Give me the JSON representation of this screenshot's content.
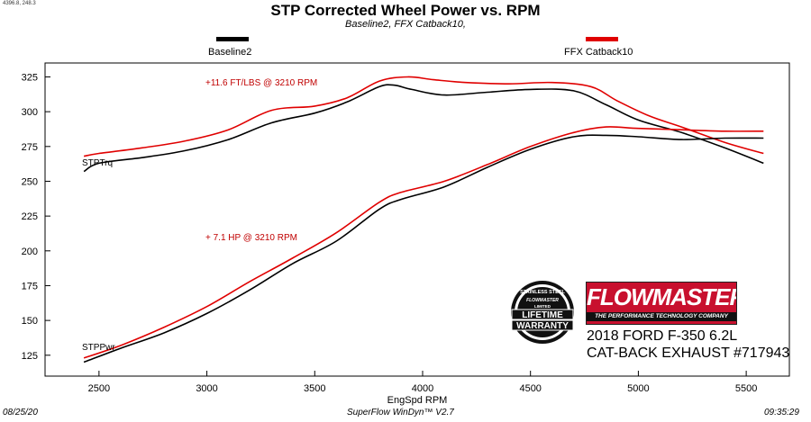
{
  "corner_readout": "4396.8, 248.3",
  "title": "STP Corrected Wheel Power vs. RPM",
  "subtitle": "Baseline2, FFX Catback10,",
  "legend": [
    {
      "name": "Baseline2",
      "color": "#000000"
    },
    {
      "name": "FFX Catback10",
      "color": "#e00000"
    }
  ],
  "footer": {
    "date": "08/25/20",
    "software": "SuperFlow WinDyn™ V2.7",
    "time": "09:35:29"
  },
  "annotations": {
    "torque_gain": "+11.6 FT/LBS @ 3210 RPM",
    "hp_gain": "+ 7.1 HP @ 3210 RPM"
  },
  "curve_labels": {
    "torque": "STPTrq",
    "power": "STPPwr"
  },
  "badge": {
    "top_text": "STAINLESS STEEL",
    "brand": "FLOWMASTER",
    "limited": "LIMITED",
    "line1": "LIFETIME",
    "line2": "WARRANTY"
  },
  "brand": {
    "name": "FLOWMASTER",
    "tagline": "THE PERFORMANCE TECHNOLOGY COMPANY"
  },
  "product": {
    "line1": "2018 FORD F-350 6.2L",
    "line2": "CAT-BACK EXHAUST #717943"
  },
  "chart_data": {
    "type": "line",
    "title": "STP Corrected Wheel Power vs. RPM",
    "xlabel": "EngSpd  RPM",
    "ylabel": "",
    "xlim": [
      2250,
      5700
    ],
    "ylim": [
      110,
      335
    ],
    "x_ticks": [
      2500,
      3000,
      3500,
      4000,
      4500,
      5000,
      5500
    ],
    "y_ticks": [
      125,
      150,
      175,
      200,
      225,
      250,
      275,
      300,
      325
    ],
    "grid": false,
    "series": [
      {
        "name": "Baseline2",
        "measure": "STPTrq",
        "color": "#000000",
        "x": [
          2430,
          2500,
          2700,
          2900,
          3100,
          3300,
          3500,
          3650,
          3800,
          3870,
          3950,
          4100,
          4300,
          4500,
          4700,
          4850,
          5000,
          5200,
          5400,
          5580
        ],
        "y": [
          257,
          263,
          267,
          272,
          280,
          292,
          299,
          307,
          318,
          319,
          316,
          312,
          314,
          316,
          315,
          305,
          294,
          285,
          274,
          263
        ]
      },
      {
        "name": "FFX Catback10",
        "measure": "STPTrq",
        "color": "#e00000",
        "x": [
          2430,
          2500,
          2700,
          2900,
          3100,
          3300,
          3500,
          3650,
          3800,
          3930,
          4050,
          4200,
          4400,
          4600,
          4780,
          4900,
          5050,
          5200,
          5400,
          5580
        ],
        "y": [
          268,
          270,
          274,
          279,
          287,
          301,
          304,
          310,
          322,
          325,
          323,
          321,
          320,
          321,
          318,
          308,
          297,
          289,
          278,
          270
        ]
      },
      {
        "name": "Baseline2",
        "measure": "STPPwr",
        "color": "#000000",
        "x": [
          2430,
          2600,
          2800,
          3000,
          3200,
          3400,
          3600,
          3800,
          3900,
          4100,
          4300,
          4500,
          4700,
          4850,
          5000,
          5200,
          5400,
          5580
        ],
        "y": [
          120,
          130,
          141,
          155,
          172,
          191,
          207,
          230,
          237,
          246,
          260,
          273,
          282,
          283,
          282,
          280,
          281,
          281
        ]
      },
      {
        "name": "FFX Catback10",
        "measure": "STPPwr",
        "color": "#e00000",
        "x": [
          2430,
          2600,
          2800,
          3000,
          3200,
          3400,
          3600,
          3800,
          3900,
          4100,
          4300,
          4500,
          4700,
          4850,
          5000,
          5200,
          5400,
          5580
        ],
        "y": [
          123,
          132,
          145,
          160,
          178,
          195,
          213,
          235,
          242,
          250,
          262,
          275,
          285,
          289,
          288,
          287,
          286,
          286
        ]
      }
    ]
  }
}
